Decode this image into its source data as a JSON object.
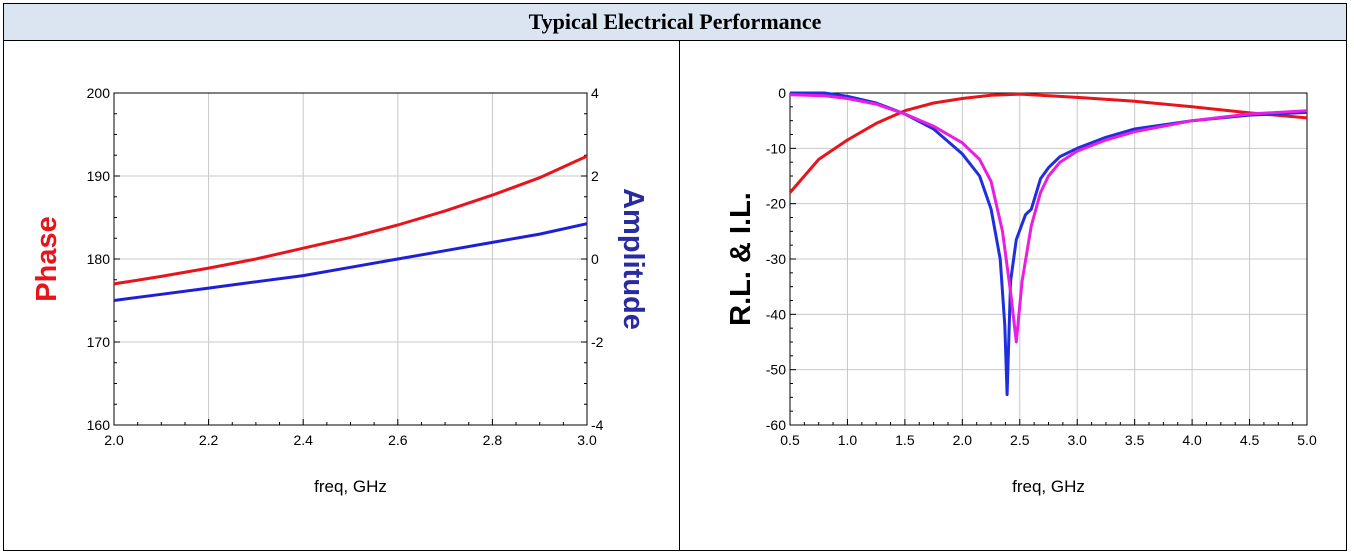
{
  "header": {
    "title": "Typical Electrical Performance"
  },
  "chart_data": [
    {
      "type": "line",
      "xlabel": "freq, GHz",
      "ylabel_left": "Phase",
      "ylabel_right": "Amplitude",
      "xlim": [
        2.0,
        3.0
      ],
      "ylim_left": [
        160,
        200
      ],
      "ylim_right": [
        -4,
        4
      ],
      "x_ticks": [
        "2.0",
        "2.2",
        "2.4",
        "2.6",
        "2.8",
        "3.0"
      ],
      "y_ticks_left": [
        "160",
        "170",
        "180",
        "190",
        "200"
      ],
      "y_ticks_right": [
        "-4",
        "-2",
        "0",
        "2",
        "4"
      ],
      "grid": true,
      "colors": {
        "phase": "#e8141c",
        "amplitude": "#1f1fd6",
        "ylabel_left": "#e8141c",
        "ylabel_right": "#2b2ba0"
      },
      "series": [
        {
          "axis": "left",
          "color": "#e8141c",
          "x": [
            2.0,
            2.1,
            2.2,
            2.3,
            2.4,
            2.5,
            2.6,
            2.7,
            2.8,
            2.9,
            3.0
          ],
          "values": [
            177.0,
            177.9,
            178.9,
            180.0,
            181.3,
            182.6,
            184.1,
            185.8,
            187.7,
            189.8,
            192.4
          ]
        },
        {
          "axis": "right",
          "color": "#1f1fd6",
          "x": [
            2.0,
            2.1,
            2.2,
            2.3,
            2.4,
            2.5,
            2.6,
            2.7,
            2.8,
            2.9,
            3.0
          ],
          "values": [
            -1.0,
            -0.85,
            -0.7,
            -0.55,
            -0.4,
            -0.2,
            0.0,
            0.2,
            0.4,
            0.6,
            0.85
          ]
        }
      ]
    },
    {
      "type": "line",
      "xlabel": "freq, GHz",
      "ylabel": "R.L. & I.L.",
      "xlim": [
        0.5,
        5.0
      ],
      "ylim": [
        -60,
        0
      ],
      "x_ticks": [
        "0.5",
        "1.0",
        "1.5",
        "2.0",
        "2.5",
        "3.0",
        "3.5",
        "4.0",
        "4.5",
        "5.0"
      ],
      "y_ticks": [
        "-60",
        "-50",
        "-40",
        "-30",
        "-20",
        "-10",
        "0"
      ],
      "grid": true,
      "series": [
        {
          "color": "#e8141c",
          "x": [
            0.5,
            0.75,
            1.0,
            1.25,
            1.5,
            1.75,
            2.0,
            2.25,
            2.5,
            2.75,
            3.0,
            3.5,
            4.0,
            4.5,
            5.0
          ],
          "values": [
            -18.0,
            -12.0,
            -8.5,
            -5.5,
            -3.2,
            -1.8,
            -1.0,
            -0.4,
            -0.2,
            -0.5,
            -0.8,
            -1.5,
            -2.5,
            -3.6,
            -4.5
          ]
        },
        {
          "color": "#1f2fdc",
          "x": [
            0.5,
            0.8,
            1.0,
            1.25,
            1.5,
            1.75,
            2.0,
            2.15,
            2.25,
            2.33,
            2.37,
            2.39,
            2.42,
            2.47,
            2.55,
            2.6,
            2.63,
            2.68,
            2.75,
            2.85,
            3.0,
            3.25,
            3.5,
            4.0,
            4.5,
            5.0
          ],
          "values": [
            0.0,
            0.0,
            -0.6,
            -1.8,
            -3.8,
            -6.5,
            -11.0,
            -15.0,
            -21.0,
            -30.0,
            -42.0,
            -54.5,
            -34.0,
            -26.5,
            -22.0,
            -21.0,
            -19.0,
            -15.5,
            -13.5,
            -11.5,
            -10.0,
            -8.0,
            -6.5,
            -5.0,
            -4.0,
            -3.5
          ]
        },
        {
          "color": "#e81ee0",
          "x": [
            0.5,
            0.8,
            1.0,
            1.25,
            1.5,
            1.75,
            2.0,
            2.15,
            2.25,
            2.35,
            2.42,
            2.47,
            2.52,
            2.6,
            2.68,
            2.75,
            2.85,
            3.0,
            3.25,
            3.5,
            4.0,
            4.5,
            5.0
          ],
          "values": [
            -0.3,
            -0.5,
            -1.0,
            -2.0,
            -3.8,
            -6.0,
            -9.0,
            -12.0,
            -16.0,
            -25.0,
            -36.0,
            -45.0,
            -34.0,
            -24.0,
            -18.0,
            -15.0,
            -12.5,
            -10.5,
            -8.5,
            -7.0,
            -5.0,
            -3.8,
            -3.2
          ]
        }
      ]
    }
  ]
}
